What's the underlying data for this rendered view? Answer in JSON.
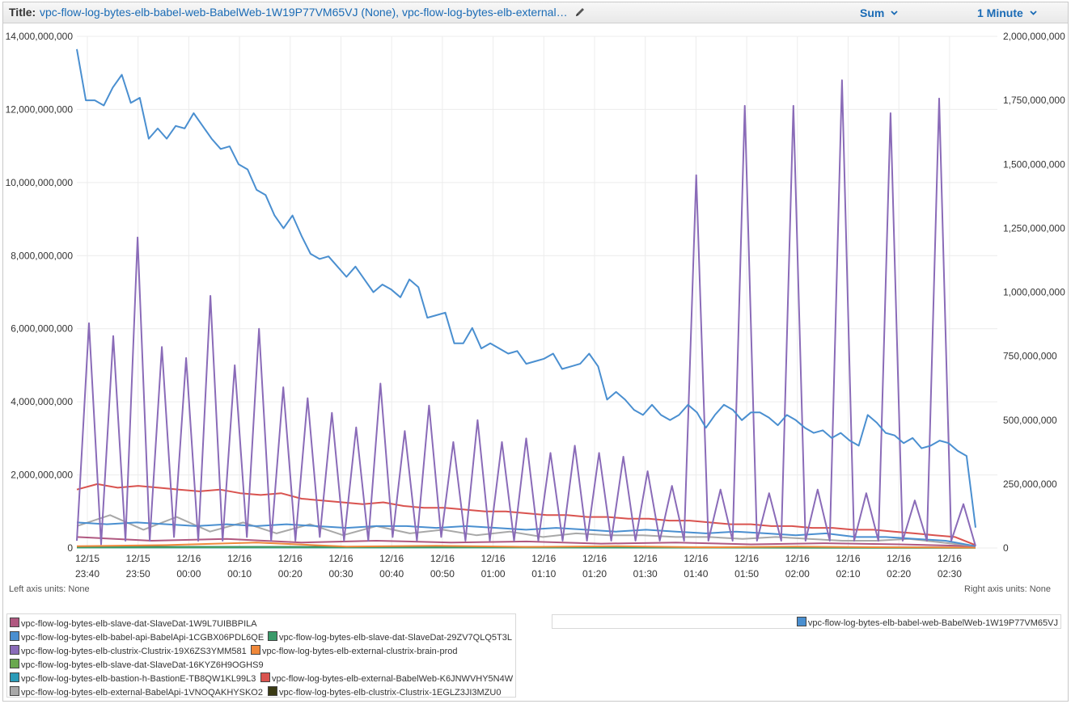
{
  "header": {
    "title_label": "Title:",
    "title_text": "vpc-flow-log-bytes-elb-babel-web-BabelWeb-1W19P77VM65VJ (None), vpc-flow-log-bytes-elb-external…",
    "stat_label": "Sum",
    "period_label": "1 Minute"
  },
  "footer": {
    "left_units": "Left axis units:  None",
    "right_units": "Right axis units:  None"
  },
  "chart_data": {
    "type": "line",
    "x_ticks": [
      {
        "date": "12/15",
        "time": "23:40"
      },
      {
        "date": "12/15",
        "time": "23:50"
      },
      {
        "date": "12/16",
        "time": "00:00"
      },
      {
        "date": "12/16",
        "time": "00:10"
      },
      {
        "date": "12/16",
        "time": "00:20"
      },
      {
        "date": "12/16",
        "time": "00:30"
      },
      {
        "date": "12/16",
        "time": "00:40"
      },
      {
        "date": "12/16",
        "time": "00:50"
      },
      {
        "date": "12/16",
        "time": "01:00"
      },
      {
        "date": "12/16",
        "time": "01:10"
      },
      {
        "date": "12/16",
        "time": "01:20"
      },
      {
        "date": "12/16",
        "time": "01:30"
      },
      {
        "date": "12/16",
        "time": "01:40"
      },
      {
        "date": "12/16",
        "time": "01:50"
      },
      {
        "date": "12/16",
        "time": "02:00"
      },
      {
        "date": "12/16",
        "time": "02:10"
      },
      {
        "date": "12/16",
        "time": "02:20"
      },
      {
        "date": "12/16",
        "time": "02:30"
      }
    ],
    "x_minutes_first": -20,
    "x_minutes_last": 157,
    "left_axis": {
      "ylim": [
        0,
        14000000000
      ],
      "tick_labels": [
        "0",
        "2,000,000,000",
        "4,000,000,000",
        "6,000,000,000",
        "8,000,000,000",
        "10,000,000,000",
        "12,000,000,000",
        "14,000,000,000"
      ]
    },
    "right_axis": {
      "ylim": [
        0,
        2000000000
      ],
      "tick_labels": [
        "0",
        "250,000,000",
        "500,000,000",
        "750,000,000",
        "1,000,000,000",
        "1,250,000,000",
        "1,500,000,000",
        "1,750,000,000",
        "2,000,000,000"
      ]
    },
    "grid": true,
    "series": [
      {
        "name": "vpc-flow-log-bytes-elb-babel-web-BabelWeb-1W19P77VM65VJ",
        "axis": "right",
        "color": "#4a8fd0",
        "values": [
          1950000000,
          1750000000,
          1750000000,
          1730000000,
          1800000000,
          1850000000,
          1740000000,
          1760000000,
          1600000000,
          1640000000,
          1600000000,
          1650000000,
          1640000000,
          1700000000,
          1650000000,
          1600000000,
          1560000000,
          1570000000,
          1500000000,
          1480000000,
          1400000000,
          1380000000,
          1300000000,
          1250000000,
          1300000000,
          1220000000,
          1150000000,
          1130000000,
          1140000000,
          1100000000,
          1060000000,
          1100000000,
          1050000000,
          1000000000,
          1030000000,
          1010000000,
          980000000,
          1050000000,
          1020000000,
          900000000,
          910000000,
          920000000,
          800000000,
          800000000,
          860000000,
          780000000,
          800000000,
          780000000,
          760000000,
          770000000,
          720000000,
          730000000,
          740000000,
          760000000,
          700000000,
          710000000,
          720000000,
          760000000,
          710000000,
          580000000,
          610000000,
          580000000,
          540000000,
          520000000,
          560000000,
          520000000,
          500000000,
          520000000,
          560000000,
          530000000,
          470000000,
          520000000,
          560000000,
          540000000,
          500000000,
          530000000,
          530000000,
          510000000,
          480000000,
          520000000,
          500000000,
          470000000,
          450000000,
          460000000,
          430000000,
          450000000,
          420000000,
          400000000,
          520000000,
          490000000,
          450000000,
          440000000,
          410000000,
          430000000,
          390000000,
          400000000,
          420000000,
          410000000,
          380000000,
          360000000,
          80000000
        ]
      },
      {
        "name": "vpc-flow-log-bytes-elb-clustrix-Clustrix-19X6ZS3YMM581",
        "axis": "left",
        "color": "#8a6bb8",
        "values": [
          200000000,
          6150000000,
          100000000,
          5800000000,
          200000000,
          8500000000,
          200000000,
          5500000000,
          300000000,
          5200000000,
          200000000,
          6900000000,
          200000000,
          5000000000,
          300000000,
          6000000000,
          200000000,
          4400000000,
          200000000,
          4100000000,
          300000000,
          3700000000,
          200000000,
          3300000000,
          200000000,
          4500000000,
          300000000,
          3200000000,
          200000000,
          3900000000,
          300000000,
          2900000000,
          200000000,
          3500000000,
          200000000,
          2900000000,
          200000000,
          3000000000,
          200000000,
          2600000000,
          200000000,
          2800000000,
          200000000,
          2600000000,
          200000000,
          2500000000,
          200000000,
          2100000000,
          200000000,
          1700000000,
          200000000,
          10200000000,
          200000000,
          1600000000,
          200000000,
          12100000000,
          200000000,
          1500000000,
          200000000,
          12100000000,
          200000000,
          1600000000,
          200000000,
          12800000000,
          200000000,
          1500000000,
          200000000,
          11900000000,
          200000000,
          1300000000,
          200000000,
          12300000000,
          200000000,
          1200000000,
          50000000
        ]
      },
      {
        "name": "vpc-flow-log-bytes-elb-external-BabelWeb-K6JNWVHY5N4W",
        "axis": "left",
        "color": "#d9534f",
        "values": [
          1600000000,
          1750000000,
          1650000000,
          1700000000,
          1650000000,
          1600000000,
          1550000000,
          1600000000,
          1500000000,
          1450000000,
          1500000000,
          1350000000,
          1300000000,
          1250000000,
          1200000000,
          1250000000,
          1150000000,
          1100000000,
          1100000000,
          1050000000,
          1000000000,
          1000000000,
          950000000,
          900000000,
          900000000,
          850000000,
          850000000,
          800000000,
          800000000,
          750000000,
          750000000,
          700000000,
          650000000,
          650000000,
          600000000,
          600000000,
          550000000,
          550000000,
          500000000,
          500000000,
          450000000,
          400000000,
          350000000,
          300000000,
          80000000
        ]
      },
      {
        "name": "vpc-flow-log-bytes-elb-babel-api-BabelApi-1CGBX06PDL6QE",
        "axis": "left",
        "color": "#4a8fd0",
        "values": [
          700000000,
          650000000,
          700000000,
          650000000,
          600000000,
          650000000,
          600000000,
          650000000,
          600000000,
          550000000,
          600000000,
          600000000,
          550000000,
          600000000,
          550000000,
          500000000,
          550000000,
          500000000,
          450000000,
          500000000,
          450000000,
          400000000,
          450000000,
          400000000,
          350000000,
          400000000,
          300000000,
          300000000,
          250000000,
          200000000,
          50000000
        ]
      },
      {
        "name": "vpc-flow-log-bytes-elb-external-BabelApi-1VNOQAKHYSKO2",
        "axis": "left",
        "color": "#a8a8a8",
        "values": [
          600000000,
          900000000,
          500000000,
          850000000,
          450000000,
          700000000,
          400000000,
          650000000,
          350000000,
          600000000,
          400000000,
          500000000,
          350000000,
          450000000,
          300000000,
          400000000,
          350000000,
          350000000,
          300000000,
          300000000,
          250000000,
          300000000,
          250000000,
          200000000,
          200000000,
          250000000,
          150000000,
          50000000
        ]
      },
      {
        "name": "vpc-flow-log-bytes-elb-slave-dat-SlaveDat-1W9L7UIBBPILA",
        "axis": "left",
        "color": "#b05880",
        "values": [
          300000000,
          200000000,
          250000000,
          150000000,
          200000000,
          150000000,
          180000000,
          120000000,
          150000000,
          100000000,
          130000000,
          100000000,
          50000000
        ]
      },
      {
        "name": "vpc-flow-log-bytes-elb-external-clustrix-brain-prod",
        "axis": "left",
        "color": "#f0883a",
        "values": [
          50000000,
          80000000,
          150000000,
          40000000,
          60000000,
          30000000,
          50000000,
          20000000,
          40000000,
          20000000,
          10000000
        ]
      },
      {
        "name": "vpc-flow-log-bytes-elb-slave-dat-SlaveDat-29ZV7QLQ5T3L",
        "axis": "left",
        "color": "#3a9a6a",
        "values": [
          20000000,
          30000000,
          20000000,
          25000000,
          20000000,
          15000000,
          10000000
        ]
      },
      {
        "name": "vpc-flow-log-bytes-elb-slave-dat-SlaveDat-16KYZ6H9OGHS9",
        "axis": "left",
        "color": "#6aa84f",
        "values": [
          15000000,
          20000000,
          15000000,
          10000000,
          5000000
        ]
      },
      {
        "name": "vpc-flow-log-bytes-elb-bastion-h-BastionE-TB8QW1KL99L3",
        "axis": "left",
        "color": "#2a9bb8",
        "values": [
          10000000,
          12000000,
          8000000,
          5000000
        ]
      },
      {
        "name": "vpc-flow-log-bytes-elb-clustrix-Clustrix-1EGLZ3JI3MZU0",
        "axis": "left",
        "color": "#3a3a14",
        "values": [
          30000000,
          30000000,
          25000000,
          20000000,
          10000000
        ]
      }
    ]
  },
  "legend_left": [
    {
      "label": "vpc-flow-log-bytes-elb-slave-dat-SlaveDat-1W9L7UIBBPILA",
      "color": "#b05880"
    },
    {
      "label": "vpc-flow-log-bytes-elb-babel-api-BabelApi-1CGBX06PDL6QE",
      "color": "#4a8fd0"
    },
    {
      "label": "vpc-flow-log-bytes-elb-slave-dat-SlaveDat-29ZV7QLQ5T3L",
      "color": "#3a9a6a"
    },
    {
      "label": "vpc-flow-log-bytes-elb-clustrix-Clustrix-19X6ZS3YMM581",
      "color": "#8a6bb8"
    },
    {
      "label": "vpc-flow-log-bytes-elb-external-clustrix-brain-prod",
      "color": "#f0883a"
    },
    {
      "label": "vpc-flow-log-bytes-elb-slave-dat-SlaveDat-16KYZ6H9OGHS9",
      "color": "#6aa84f"
    },
    {
      "label": "vpc-flow-log-bytes-elb-bastion-h-BastionE-TB8QW1KL99L3",
      "color": "#2a9bb8"
    },
    {
      "label": "vpc-flow-log-bytes-elb-external-BabelWeb-K6JNWVHY5N4W",
      "color": "#d9534f"
    },
    {
      "label": "vpc-flow-log-bytes-elb-external-BabelApi-1VNOQAKHYSKO2",
      "color": "#a8a8a8"
    },
    {
      "label": "vpc-flow-log-bytes-elb-clustrix-Clustrix-1EGLZ3JI3MZU0",
      "color": "#3a3a14"
    }
  ],
  "legend_right": [
    {
      "label": "vpc-flow-log-bytes-elb-babel-web-BabelWeb-1W19P77VM65VJ",
      "color": "#4a8fd0"
    }
  ]
}
